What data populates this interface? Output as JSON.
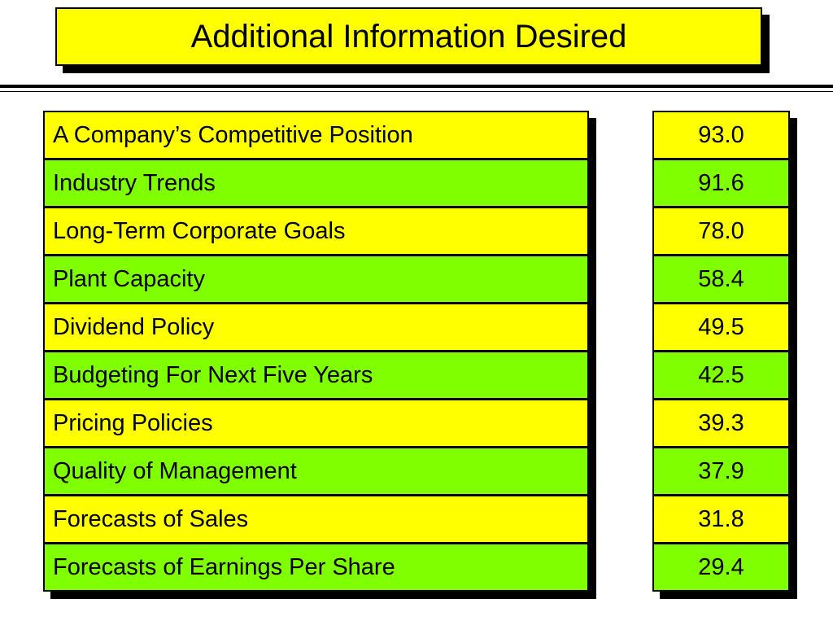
{
  "slide": {
    "title": "Additional Information Desired",
    "colors": {
      "title_background": "#ffff00",
      "row_yellow": "#ffff00",
      "row_green": "#7fff00",
      "shadow": "#000000"
    },
    "rows": [
      {
        "label": "A Company’s Competitive Position",
        "value": "93.0",
        "color": "#ffff00"
      },
      {
        "label": "Industry Trends",
        "value": "91.6",
        "color": "#7fff00"
      },
      {
        "label": "Long-Term Corporate Goals",
        "value": "78.0",
        "color": "#ffff00"
      },
      {
        "label": "Plant Capacity",
        "value": "58.4",
        "color": "#7fff00"
      },
      {
        "label": "Dividend Policy",
        "value": "49.5",
        "color": "#ffff00"
      },
      {
        "label": "Budgeting For Next Five Years",
        "value": "42.5",
        "color": "#7fff00"
      },
      {
        "label": "Pricing Policies",
        "value": "39.3",
        "color": "#ffff00"
      },
      {
        "label": "Quality of Management",
        "value": "37.9",
        "color": "#7fff00"
      },
      {
        "label": "Forecasts of Sales",
        "value": "31.8",
        "color": "#ffff00"
      },
      {
        "label": "Forecasts of Earnings Per Share",
        "value": "29.4",
        "color": "#7fff00"
      }
    ]
  }
}
